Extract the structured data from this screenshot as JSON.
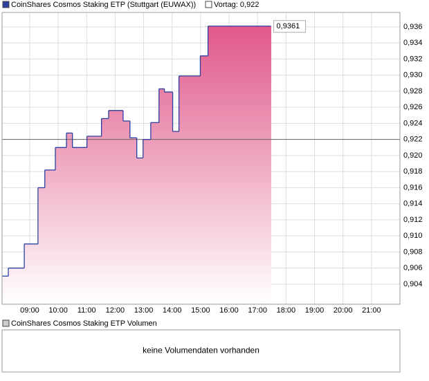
{
  "chart_data": [
    {
      "type": "line",
      "x": [
        8.03,
        8.25,
        8.81,
        9.29,
        9.53,
        9.9,
        10.29,
        10.5,
        11.01,
        11.52,
        11.77,
        12.28,
        12.52,
        12.76,
        12.98,
        13.25,
        13.54,
        13.73,
        14.02,
        14.24,
        14.99,
        15.26,
        17.47
      ],
      "series": [
        {
          "name": "CoinShares Cosmos Staking ETP (Stuttgart (EUWAX))",
          "color": "#2b3f9e",
          "values": [
            0.905,
            0.906,
            0.909,
            0.916,
            0.9182,
            0.921,
            0.9228,
            0.921,
            0.9224,
            0.9246,
            0.9256,
            0.9243,
            0.9222,
            0.9197,
            0.922,
            0.9241,
            0.9283,
            0.9279,
            0.923,
            0.9299,
            0.9324,
            0.9361,
            0.9361
          ],
          "value_labels": [
            null,
            null,
            null,
            null,
            null,
            null,
            null,
            null,
            null,
            null,
            null,
            null,
            null,
            null,
            null,
            null,
            null,
            null,
            null,
            null,
            null,
            null,
            "0,9361"
          ]
        }
      ],
      "fill_color": "#e0588a",
      "xlim": [
        8.03,
        22
      ],
      "xticks": [
        {
          "value": 9,
          "label": "09:00"
        },
        {
          "value": 10,
          "label": "10:00"
        },
        {
          "value": 11,
          "label": "11:00"
        },
        {
          "value": 12,
          "label": "12:00"
        },
        {
          "value": 13,
          "label": "13:00"
        },
        {
          "value": 14,
          "label": "14:00"
        },
        {
          "value": 15,
          "label": "15:00"
        },
        {
          "value": 16,
          "label": "16:00"
        },
        {
          "value": 17,
          "label": "17:00"
        },
        {
          "value": 18,
          "label": "18:00"
        },
        {
          "value": 19,
          "label": "19:00"
        },
        {
          "value": 20,
          "label": "20:00"
        },
        {
          "value": 21,
          "label": "21:00"
        }
      ],
      "ylim": [
        0.9015,
        0.9378
      ],
      "yticks": [
        {
          "value": 0.904,
          "label": "0,904"
        },
        {
          "value": 0.906,
          "label": "0,906"
        },
        {
          "value": 0.908,
          "label": "0,908"
        },
        {
          "value": 0.91,
          "label": "0,910"
        },
        {
          "value": 0.912,
          "label": "0,912"
        },
        {
          "value": 0.914,
          "label": "0,914"
        },
        {
          "value": 0.916,
          "label": "0,916"
        },
        {
          "value": 0.918,
          "label": "0,918"
        },
        {
          "value": 0.92,
          "label": "0,920"
        },
        {
          "value": 0.922,
          "label": "0,922"
        },
        {
          "value": 0.924,
          "label": "0,924"
        },
        {
          "value": 0.926,
          "label": "0,926"
        },
        {
          "value": 0.928,
          "label": "0,928"
        },
        {
          "value": 0.93,
          "label": "0,930"
        },
        {
          "value": 0.932,
          "label": "0,932"
        },
        {
          "value": 0.934,
          "label": "0,934"
        },
        {
          "value": 0.936,
          "label": "0,936"
        }
      ],
      "grid": true,
      "reference_line": {
        "label": "Vortag: 0,922",
        "value": 0.922
      }
    },
    {
      "type": "bar",
      "title": "CoinShares Cosmos Staking ETP Volumen",
      "annotation": "keine Volumendaten vorhanden"
    }
  ]
}
